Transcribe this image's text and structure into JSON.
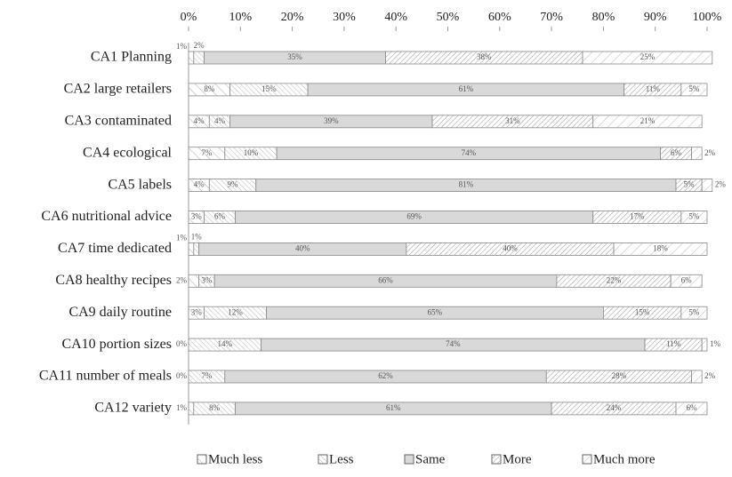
{
  "chart_data": {
    "type": "stacked-bar-horizontal",
    "categories": [
      "CA1 Planning",
      "CA2 large retailers",
      "CA3 contaminated",
      "CA4 ecological",
      "CA5 labels",
      "CA6 nutritional advice",
      "CA7 time dedicated",
      "CA8 healthy recipes",
      "CA9 daily routine",
      "CA10 portion sizes",
      "CA11 number of meals",
      "CA12 variety"
    ],
    "series": [
      {
        "name": "Much less",
        "color": "#ffffff",
        "values": [
          1,
          8,
          4,
          7,
          4,
          3,
          1,
          2,
          3,
          0,
          0,
          1
        ],
        "value_labels": [
          "1%",
          "8%",
          "4%",
          "7%",
          "4%",
          "3%",
          "1%",
          "2%",
          "3%",
          "0%",
          "0%",
          "1%"
        ]
      },
      {
        "name": "Less",
        "color": "#ffffff",
        "values": [
          2,
          15,
          4,
          10,
          9,
          6,
          1,
          3,
          12,
          14,
          7,
          8
        ],
        "value_labels": [
          "2%",
          "15%",
          "4%",
          "10%",
          "9%",
          "6%",
          "1%",
          "3%",
          "12%",
          "14%",
          "7%",
          "8%"
        ]
      },
      {
        "name": "Same",
        "color": "#d9d9d9",
        "values": [
          35,
          61,
          39,
          74,
          81,
          69,
          40,
          66,
          65,
          74,
          62,
          61
        ],
        "value_labels": [
          "35%",
          "61%",
          "39%",
          "74%",
          "81%",
          "69%",
          "40%",
          "66%",
          "65%",
          "74%",
          "62%",
          "61%"
        ]
      },
      {
        "name": "More",
        "color": "#ffffff",
        "values": [
          38,
          11,
          31,
          6,
          5,
          17,
          40,
          22,
          15,
          11,
          28,
          24
        ],
        "value_labels": [
          "38%",
          "11%",
          "31%",
          "6%",
          "5%",
          "17%",
          "40%",
          "22%",
          "15%",
          "11%",
          "28%",
          "24%"
        ]
      },
      {
        "name": "Much more",
        "color": "#ffffff",
        "values": [
          25,
          5,
          21,
          2,
          2,
          5,
          18,
          6,
          5,
          1,
          2,
          6
        ],
        "value_labels": [
          "25%",
          "5%",
          "21%",
          "2%",
          "2%",
          "5%",
          "18%",
          "6%",
          "5%",
          "1%",
          "2%",
          "6%"
        ]
      }
    ],
    "xlim": [
      0,
      100
    ],
    "xticks": [
      {
        "value": 0,
        "label": "0%"
      },
      {
        "value": 10,
        "label": "10%"
      },
      {
        "value": 20,
        "label": "20%"
      },
      {
        "value": 30,
        "label": "30%"
      },
      {
        "value": 40,
        "label": "40%"
      },
      {
        "value": 50,
        "label": "50%"
      },
      {
        "value": 60,
        "label": "60%"
      },
      {
        "value": 70,
        "label": "70%"
      },
      {
        "value": 80,
        "label": "80%"
      },
      {
        "value": 90,
        "label": "90%"
      },
      {
        "value": 100,
        "label": "100%"
      }
    ],
    "legend": "bottom"
  }
}
